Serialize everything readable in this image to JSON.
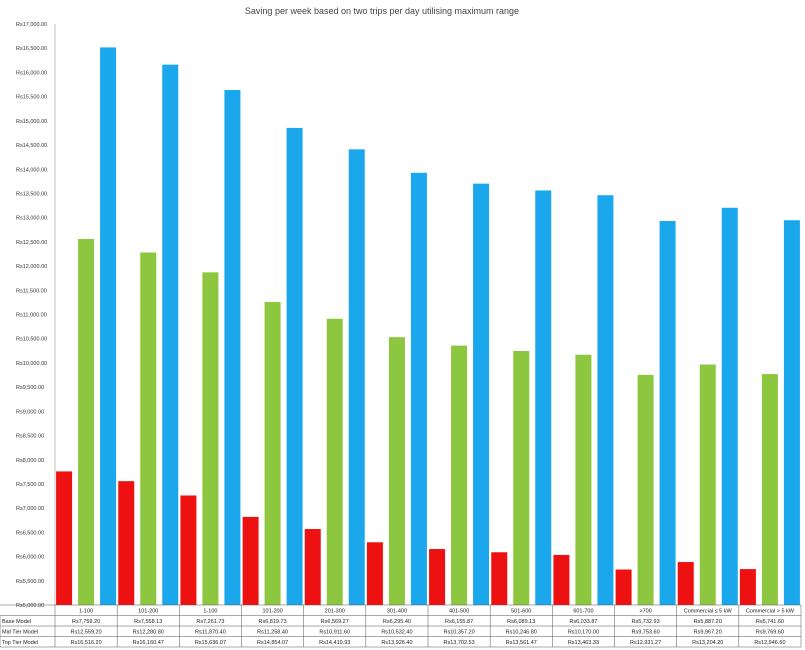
{
  "chart_data": {
    "type": "bar",
    "title": "Saving per week based on two trips per day utilising maximum range",
    "xlabel": "",
    "ylabel": "",
    "ylim": [
      5000,
      17000
    ],
    "y_ticks": [
      "Rs17,000.00",
      "Rs16,500.00",
      "Rs16,000.00",
      "Rs15,500.00",
      "Rs15,000.00",
      "Rs14,500.00",
      "Rs14,000.00",
      "Rs13,500.00",
      "Rs13,000.00",
      "Rs12,500.00",
      "Rs12,000.00",
      "Rs11,500.00",
      "Rs11,000.00",
      "Rs10,500.00",
      "Rs10,000.00",
      "Rs9,500.00",
      "Rs9,000.00",
      "Rs8,500.00",
      "Rs8,000.00",
      "Rs7,500.00",
      "Rs7,000.00",
      "Rs6,500.00",
      "Rs6,000.00",
      "Rs5,500.00",
      "Rs5,000.00"
    ],
    "grid": false,
    "legend": "data table below plot",
    "categories": [
      "1-100",
      "101-200",
      "1-100",
      "101-200",
      "201-300",
      "301-400",
      "401-500",
      "501-600",
      "601-700",
      ">700",
      "Commercial ≤ 5 kW",
      "Commercial > 5 kW"
    ],
    "series": [
      {
        "name": "Base Model",
        "color": "#ee1111",
        "values": [
          7759.2,
          7558.13,
          7261.73,
          6819.73,
          6569.27,
          6295.4,
          6155.87,
          6089.13,
          6033.87,
          5732.93,
          5887.2,
          5741.6
        ],
        "labels": [
          "Rs7,759.20",
          "Rs7,558.13",
          "Rs7,261.73",
          "Rs6,819.73",
          "Rs6,569.27",
          "Rs6,295.40",
          "Rs6,155.87",
          "Rs6,089.13",
          "Rs6,033.87",
          "Rs5,732.93",
          "Rs5,887.20",
          "Rs5,741.60"
        ]
      },
      {
        "name": "Mid Tier Model",
        "color": "#8dc63f",
        "values": [
          12559.2,
          12280.8,
          11870.4,
          11258.4,
          10911.6,
          10532.4,
          10357.2,
          10246.8,
          10170.0,
          9753.6,
          9967.2,
          9769.6
        ],
        "labels": [
          "Rs12,559.20",
          "Rs12,280.80",
          "Rs11,870.40",
          "Rs11,258.40",
          "Rs10,911.60",
          "Rs10,532.40",
          "Rs10,357.20",
          "Rs10,246.80",
          "Rs10,170.00",
          "Rs9,753.60",
          "Rs9,967.20",
          "Rs9,769.60"
        ]
      },
      {
        "name": "Top Tier Model",
        "color": "#1aa7ec",
        "values": [
          16516.2,
          16160.47,
          15636.07,
          14854.07,
          14410.93,
          13926.4,
          13702.53,
          13561.47,
          13463.33,
          12931.27,
          13204.2,
          12946.6
        ],
        "labels": [
          "Rs16,516.20",
          "Rs16,160.47",
          "Rs15,636.07",
          "Rs14,854.07",
          "Rs14,410.93",
          "Rs13,926.40",
          "Rs13,702.53",
          "Rs13,561.47",
          "Rs13,463.33",
          "Rs12,931.27",
          "Rs13,204.20",
          "Rs12,946.60"
        ]
      }
    ]
  }
}
